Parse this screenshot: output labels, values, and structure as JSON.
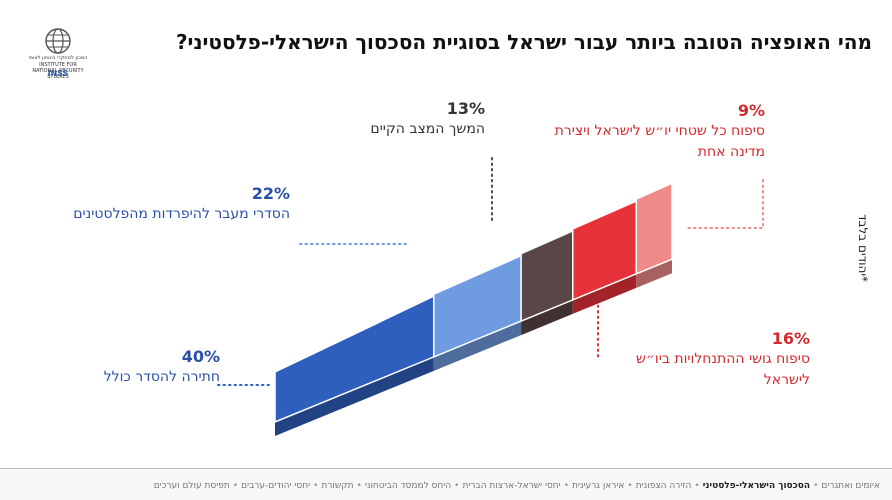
{
  "title": "מהי האופציה הטובה ביותר עבור ישראל בסוגיית הסכסוך הישראלי-פלסטיני?",
  "logo": {
    "name_he": "המכון למחקרי ביטחון לאומי",
    "name_en": "INSTITUTE FOR NATIONAL SECURITY STUDIES",
    "abbr": "INSS"
  },
  "note": "*יהודים בלבד",
  "footer": {
    "items": [
      {
        "label": "איומים ואתגרים",
        "active": false
      },
      {
        "label": "הסכסוך הישראלי-פלסטיני",
        "active": true
      },
      {
        "label": "הזירה הצפונית",
        "active": false
      },
      {
        "label": "איראן גרעינית",
        "active": false
      },
      {
        "label": "יחסי ישראל-ארצות הברית",
        "active": false
      },
      {
        "label": "היחס לממסד הביטחוני",
        "active": false
      },
      {
        "label": "תקשורת",
        "active": false
      },
      {
        "label": "יחסי יהודים-ערבים",
        "active": false
      },
      {
        "label": "תפיסת עולם וערכים",
        "active": false
      }
    ]
  },
  "chart_data": {
    "type": "bar",
    "title": "מהי האופציה הטובה ביותר עבור ישראל בסוגיית הסכסוך הישראלי-פלסטיני?",
    "categories": [
      "חתירה להסדר כולל",
      "הסדרי מעבר להיפרדות מהפלסטינים",
      "המשך המצב הקיים",
      "סיפוח גושי ההתנחלויות ביו״ש לישראל",
      "סיפוח כל שטחי יו״ש לישראל ויצירת מדינה אחת"
    ],
    "values": [
      40,
      22,
      13,
      16,
      9
    ],
    "value_labels": [
      "40%",
      "22%",
      "13%",
      "16%",
      "9%"
    ],
    "colors": [
      "#2f5fbd",
      "#6f9be0",
      "#5a4646",
      "#e8323a",
      "#f08a88"
    ],
    "unit": "%"
  }
}
